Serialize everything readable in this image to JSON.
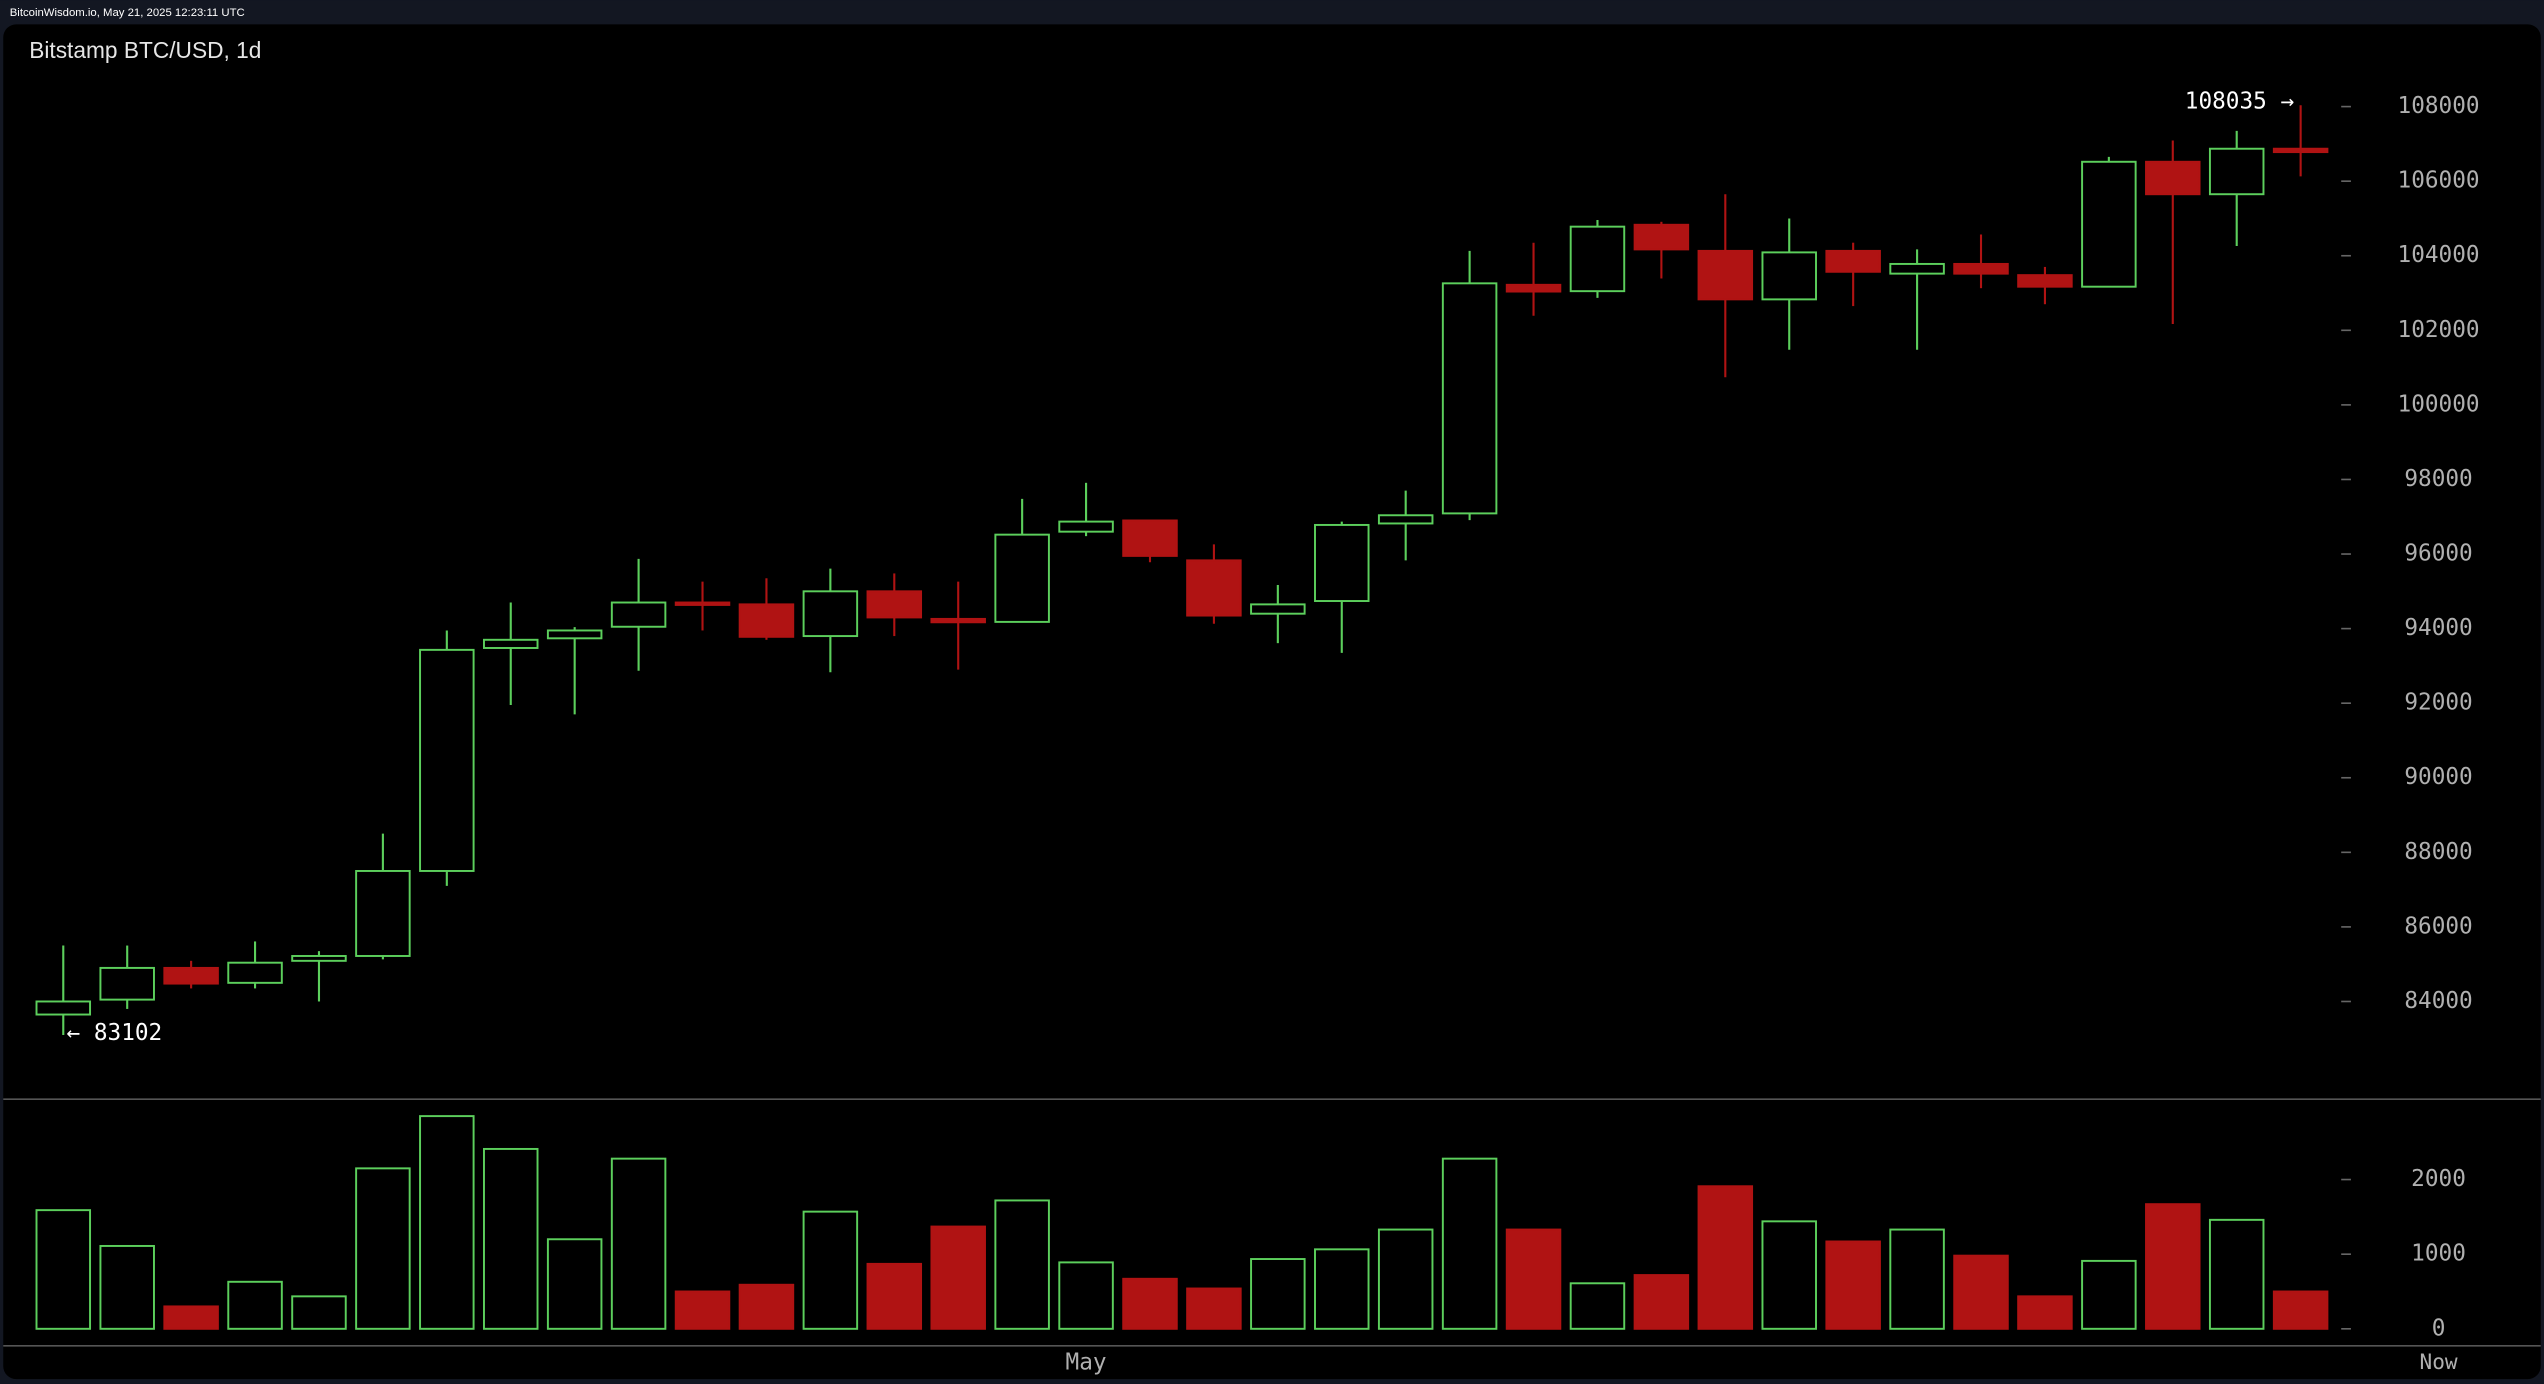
{
  "header": "BitcoinWisdom.io, May 21, 2025 12:23:11 UTC",
  "chart_data": {
    "type": "candlestick",
    "title": "Bitstamp BTC/USD, 1d",
    "categories": [
      null,
      null,
      null,
      null,
      null,
      null,
      null,
      null,
      null,
      null,
      null,
      null,
      null,
      null,
      null,
      null,
      "May",
      null,
      null,
      null,
      null,
      null,
      null,
      null,
      null,
      null,
      null,
      null,
      null,
      null,
      null,
      null,
      null,
      null,
      null,
      null
    ],
    "end_label": "Now",
    "open": [
      83650,
      84050,
      84900,
      84500,
      85090,
      85220,
      87500,
      93480,
      93740,
      94050,
      94700,
      94650,
      93800,
      95000,
      94260,
      94180,
      96600,
      96900,
      95830,
      94400,
      94740,
      96820,
      97090,
      103220,
      103050,
      104830,
      104130,
      102830,
      104130,
      103520,
      103780,
      103480,
      103170,
      106520,
      105650,
      106870
    ],
    "high": [
      85500,
      85500,
      85090,
      85610,
      85350,
      88500,
      93950,
      94700,
      94040,
      95870,
      95260,
      95350,
      95610,
      95480,
      95260,
      97480,
      97910,
      96900,
      96260,
      95170,
      96870,
      97700,
      104130,
      104350,
      104960,
      104910,
      105650,
      105000,
      104350,
      104170,
      104570,
      103700,
      106650,
      107090,
      107350,
      108035
    ],
    "low": [
      83102,
      83800,
      84350,
      84350,
      84000,
      85130,
      87100,
      91950,
      91700,
      92870,
      93950,
      93700,
      92830,
      93800,
      92900,
      94170,
      96480,
      95780,
      94130,
      93610,
      93350,
      95830,
      96910,
      102390,
      102870,
      103390,
      100740,
      101480,
      102650,
      101480,
      103130,
      102700,
      103170,
      102170,
      104260,
      106130
    ],
    "close": [
      84000,
      84900,
      84480,
      85040,
      85220,
      87500,
      93430,
      93700,
      93950,
      94700,
      94650,
      93780,
      95000,
      94300,
      94170,
      96520,
      96870,
      95950,
      94350,
      94650,
      96780,
      97040,
      103260,
      103040,
      104780,
      104170,
      102830,
      104090,
      103570,
      103780,
      103520,
      103170,
      106520,
      105650,
      106870,
      106780
    ],
    "volume": [
      1590,
      1110,
      300,
      630,
      435,
      2150,
      2850,
      2410,
      1200,
      2280,
      500,
      590,
      1570,
      870,
      1370,
      1720,
      890,
      670,
      540,
      935,
      1065,
      1330,
      2280,
      1330,
      610,
      720,
      1910,
      1440,
      1170,
      1330,
      980,
      435,
      910,
      1670,
      1460,
      500
    ],
    "max_label": "108035 →",
    "min_label": "← 83102",
    "up_color": "#5ccf5c",
    "down_color": "#b01313",
    "ylim": [
      81400,
      108900
    ],
    "yticks": [
      84000,
      86000,
      88000,
      90000,
      92000,
      94000,
      96000,
      98000,
      100000,
      102000,
      104000,
      106000,
      108000
    ],
    "volume_ylim": [
      0,
      3000
    ],
    "volume_yticks": [
      0,
      1000,
      2000
    ]
  }
}
